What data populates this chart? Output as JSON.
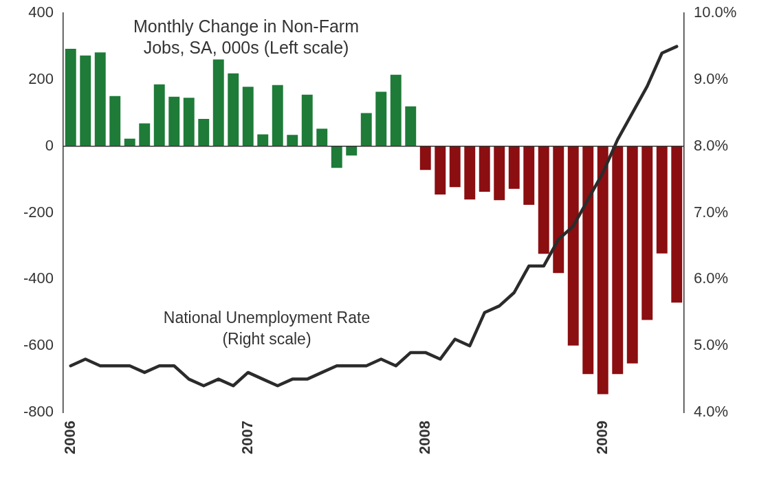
{
  "chart_data": {
    "type": "bar",
    "categories": [
      "2006",
      null,
      null,
      null,
      null,
      null,
      null,
      null,
      null,
      null,
      null,
      null,
      "2007",
      null,
      null,
      null,
      null,
      null,
      null,
      null,
      null,
      null,
      null,
      null,
      "2008",
      null,
      null,
      null,
      null,
      null,
      null,
      null,
      null,
      null,
      null,
      null,
      "2009",
      null,
      null,
      null,
      null,
      null
    ],
    "series": [
      {
        "name": "Monthly Change in Non-Farm Jobs, SA, 000s (Left scale)",
        "colors": [
          "#1e7b38",
          "#1e7b38",
          "#1e7b38",
          "#1e7b38",
          "#1e7b38",
          "#1e7b38",
          "#1e7b38",
          "#1e7b38",
          "#1e7b38",
          "#1e7b38",
          "#1e7b38",
          "#1e7b38",
          "#1e7b38",
          "#1e7b38",
          "#1e7b38",
          "#1e7b38",
          "#1e7b38",
          "#1e7b38",
          "#1e7b38",
          "#1e7b38",
          "#1e7b38",
          "#1e7b38",
          "#1e7b38",
          "#1e7b38",
          "#8b0e11",
          "#8b0e11",
          "#8b0e11",
          "#8b0e11",
          "#8b0e11",
          "#8b0e11",
          "#8b0e11",
          "#8b0e11",
          "#8b0e11",
          "#8b0e11",
          "#8b0e11",
          "#8b0e11",
          "#8b0e11",
          "#8b0e11",
          "#8b0e11",
          "#8b0e11",
          "#8b0e11",
          "#8b0e11"
        ],
        "values": [
          293,
          273,
          282,
          151,
          23,
          69,
          186,
          149,
          146,
          82,
          261,
          219,
          179,
          36,
          184,
          34,
          155,
          53,
          -65,
          -28,
          100,
          164,
          215,
          120,
          -71,
          -145,
          -123,
          -160,
          -137,
          -162,
          -128,
          -176,
          -323,
          -381,
          -599,
          -685,
          -745,
          -685,
          -653,
          -522,
          -322,
          -470
        ]
      },
      {
        "name": "National Unemployment Rate (Right scale)",
        "type": "line",
        "axis": "y2",
        "color": "#2b2b2b",
        "values": [
          4.7,
          4.8,
          4.7,
          4.7,
          4.7,
          4.6,
          4.7,
          4.7,
          4.5,
          4.4,
          4.5,
          4.4,
          4.6,
          4.5,
          4.4,
          4.5,
          4.5,
          4.6,
          4.7,
          4.7,
          4.7,
          4.8,
          4.7,
          4.9,
          4.9,
          4.8,
          5.1,
          5.0,
          5.5,
          5.6,
          5.8,
          6.2,
          6.2,
          6.6,
          6.8,
          7.2,
          7.6,
          8.1,
          8.5,
          8.9,
          9.4,
          9.5
        ]
      }
    ],
    "ylim": [
      -800,
      400
    ],
    "yticks": [
      -800,
      -600,
      -400,
      -200,
      0,
      200,
      400
    ],
    "y2lim": [
      4,
      10
    ],
    "y2ticks": [
      {
        "value": 4,
        "label": "4.0%"
      },
      {
        "value": 5,
        "label": "5.0%"
      },
      {
        "value": 6,
        "label": "6.0%"
      },
      {
        "value": 7,
        "label": "7.0%"
      },
      {
        "value": 8,
        "label": "8.0%"
      },
      {
        "value": 9,
        "label": "9.0%"
      },
      {
        "value": 10,
        "label": "10.0%"
      }
    ],
    "ref_lines": [
      {
        "axis": "y",
        "value": 0,
        "color": "#333333"
      }
    ],
    "grid": false,
    "legend": false,
    "marker": "none",
    "line_style": "solid"
  }
}
